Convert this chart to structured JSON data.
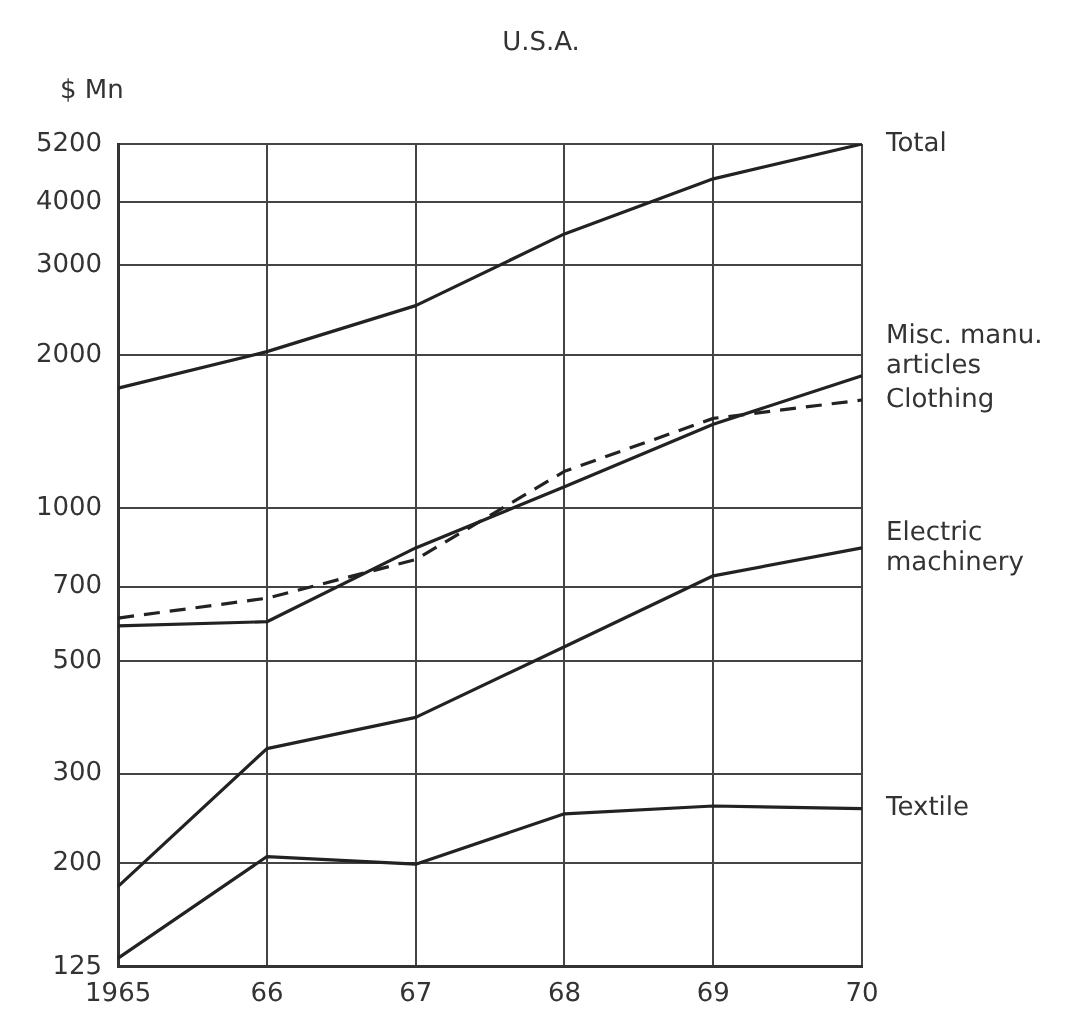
{
  "chart_data": {
    "type": "line",
    "title": "U.S.A.",
    "ylabel": "$ Mn",
    "log": "y",
    "grid": true,
    "legend": false,
    "marker": "none",
    "categories": [
      "1965",
      "66",
      "67",
      "68",
      "69",
      "70"
    ],
    "ylim": [
      125,
      5200
    ],
    "yticks": [
      125,
      200,
      300,
      500,
      700,
      1000,
      2000,
      3000,
      4000,
      5200
    ],
    "series": [
      {
        "name": "Total",
        "color": "#222222",
        "values": [
          1720,
          2030,
          2500,
          3460,
          4440,
          5200
        ]
      },
      {
        "name": "Misc. manu. articles",
        "color": "#222222",
        "values": [
          586,
          597,
          834,
          1100,
          1460,
          1820
        ]
      },
      {
        "name": "Clothing",
        "color": "#222222",
        "line_style": "dashed",
        "values": [
          607,
          664,
          791,
          1180,
          1500,
          1630
        ]
      },
      {
        "name": "Electric machinery",
        "color": "#222222",
        "values": [
          180,
          336,
          387,
          533,
          735,
          834
        ]
      },
      {
        "name": "Textile",
        "color": "#222222",
        "values": [
          130,
          206,
          199,
          250,
          259,
          256
        ]
      }
    ]
  }
}
